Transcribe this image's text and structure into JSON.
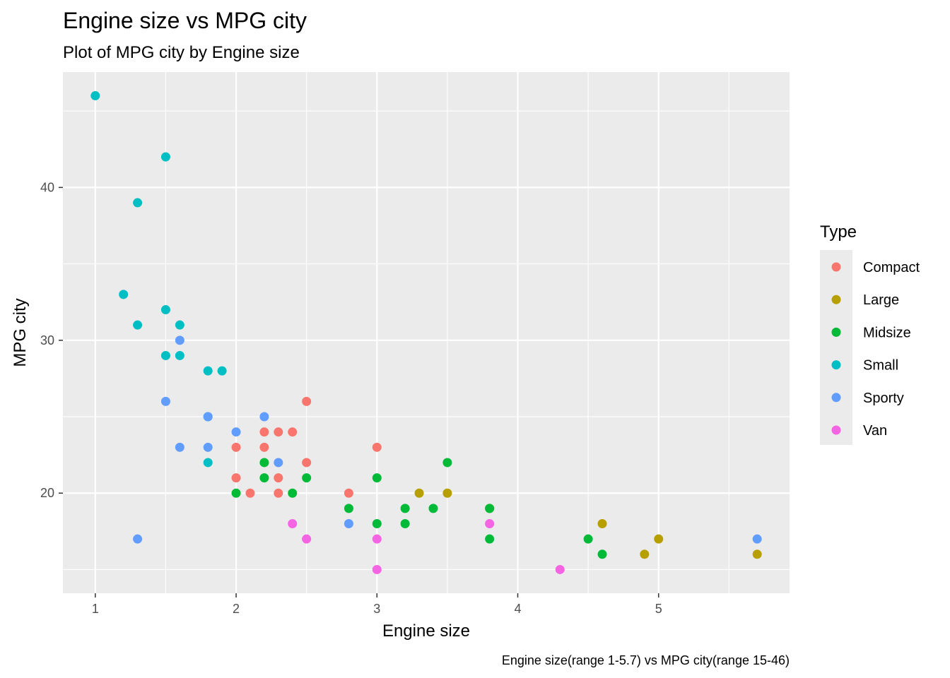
{
  "chart_data": {
    "type": "scatter",
    "title": "Engine size vs MPG city",
    "subtitle": "Plot of MPG city by Engine size",
    "xlabel": "Engine size",
    "ylabel": "MPG city",
    "caption": "Engine size(range 1-5.7) vs MPG city(range 15-46)",
    "xlim": [
      0.77,
      5.93
    ],
    "ylim": [
      13.45,
      47.55
    ],
    "x_ticks": [
      1,
      2,
      3,
      4,
      5
    ],
    "y_ticks": [
      20,
      30,
      40
    ],
    "grid": true,
    "legend": {
      "title": "Type",
      "placement": "right",
      "entries": [
        "Compact",
        "Large",
        "Midsize",
        "Small",
        "Sporty",
        "Van"
      ]
    },
    "colors": {
      "Compact": "#F8766D",
      "Large": "#B79F00",
      "Midsize": "#00BA38",
      "Small": "#00BFC4",
      "Sporty": "#619CFF",
      "Van": "#F564E3",
      "panel": "#EBEBEB",
      "grid": "#FFFFFF"
    },
    "series": [
      {
        "name": "Compact",
        "points": [
          [
            2.0,
            23
          ],
          [
            2.0,
            21
          ],
          [
            2.1,
            20
          ],
          [
            2.2,
            24
          ],
          [
            2.2,
            23
          ],
          [
            2.3,
            24
          ],
          [
            2.3,
            21
          ],
          [
            2.3,
            20
          ],
          [
            2.4,
            24
          ],
          [
            2.5,
            26
          ],
          [
            2.5,
            22
          ],
          [
            2.8,
            20
          ],
          [
            3.0,
            23
          ]
        ]
      },
      {
        "name": "Large",
        "points": [
          [
            3.3,
            20
          ],
          [
            3.5,
            20
          ],
          [
            3.8,
            19
          ],
          [
            4.6,
            18
          ],
          [
            4.9,
            16
          ],
          [
            5.0,
            17
          ],
          [
            5.7,
            16
          ]
        ]
      },
      {
        "name": "Midsize",
        "points": [
          [
            2.0,
            20
          ],
          [
            2.2,
            22
          ],
          [
            2.2,
            21
          ],
          [
            2.4,
            20
          ],
          [
            2.5,
            21
          ],
          [
            2.8,
            19
          ],
          [
            3.0,
            21
          ],
          [
            3.0,
            18
          ],
          [
            3.2,
            19
          ],
          [
            3.2,
            18
          ],
          [
            3.4,
            19
          ],
          [
            3.5,
            22
          ],
          [
            3.8,
            19
          ],
          [
            3.8,
            17
          ],
          [
            4.5,
            17
          ],
          [
            4.6,
            16
          ]
        ]
      },
      {
        "name": "Small",
        "points": [
          [
            1.0,
            46
          ],
          [
            1.2,
            33
          ],
          [
            1.3,
            39
          ],
          [
            1.3,
            31
          ],
          [
            1.5,
            42
          ],
          [
            1.5,
            32
          ],
          [
            1.5,
            29
          ],
          [
            1.6,
            31
          ],
          [
            1.6,
            29
          ],
          [
            1.8,
            28
          ],
          [
            1.8,
            25
          ],
          [
            1.8,
            22
          ],
          [
            1.9,
            28
          ]
        ]
      },
      {
        "name": "Sporty",
        "points": [
          [
            1.3,
            17
          ],
          [
            1.5,
            26
          ],
          [
            1.6,
            30
          ],
          [
            1.6,
            23
          ],
          [
            1.8,
            23
          ],
          [
            1.8,
            25
          ],
          [
            2.0,
            24
          ],
          [
            2.2,
            25
          ],
          [
            2.3,
            22
          ],
          [
            2.8,
            18
          ],
          [
            5.7,
            17
          ]
        ]
      },
      {
        "name": "Van",
        "points": [
          [
            2.4,
            18
          ],
          [
            2.5,
            17
          ],
          [
            3.0,
            17
          ],
          [
            3.0,
            15
          ],
          [
            3.8,
            18
          ],
          [
            4.3,
            15
          ]
        ]
      }
    ]
  }
}
